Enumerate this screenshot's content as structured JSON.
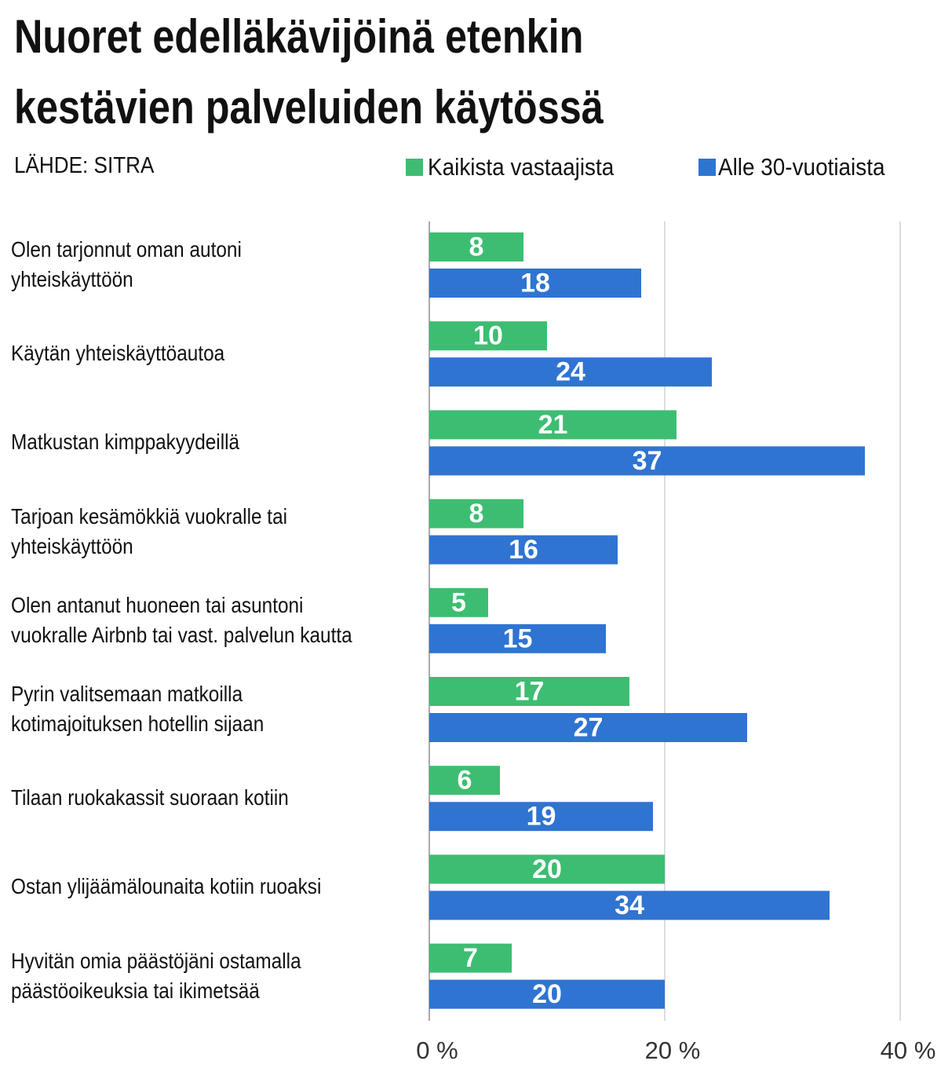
{
  "chart_data": {
    "type": "bar",
    "orientation": "horizontal",
    "title": "Nuoret edelläkävijöinä etenkin\nkestävien palveluiden käytössä",
    "source": "LÄHDE: SITRA",
    "categories": [
      "Olen tarjonnut oman autoni\nyhteiskäyttöön",
      "Käytän yhteiskäyttöautoa",
      "Matkustan kimppakyydeillä",
      "Tarjoan kesämökkiä vuokralle tai\nyhteiskäyttöön",
      "Olen antanut huoneen tai asuntoni\nvuokralle Airbnb tai vast. palvelun kautta",
      "Pyrin valitsemaan matkoilla\nkotimajoituksen hotellin sijaan",
      "Tilaan ruokakassit suoraan kotiin",
      "Ostan ylijäämälounaita kotiin ruoaksi",
      "Hyvitän omia päästöjäni ostamalla\npäästöoikeuksia tai ikimetsää"
    ],
    "series": [
      {
        "name": "Kaikista vastaajista",
        "color": "#3dbd72",
        "values": [
          8,
          10,
          21,
          8,
          5,
          17,
          6,
          20,
          7
        ]
      },
      {
        "name": "Alle 30-vuotiaista",
        "color": "#2f74d1",
        "values": [
          18,
          24,
          37,
          16,
          15,
          27,
          19,
          34,
          20
        ]
      }
    ],
    "xlim": [
      0,
      40
    ],
    "xticks": [
      {
        "value": 0,
        "label": "0 %"
      },
      {
        "value": 20,
        "label": "20 %"
      },
      {
        "value": 40,
        "label": "40 %"
      }
    ],
    "grid": true,
    "legend": "top-right"
  }
}
